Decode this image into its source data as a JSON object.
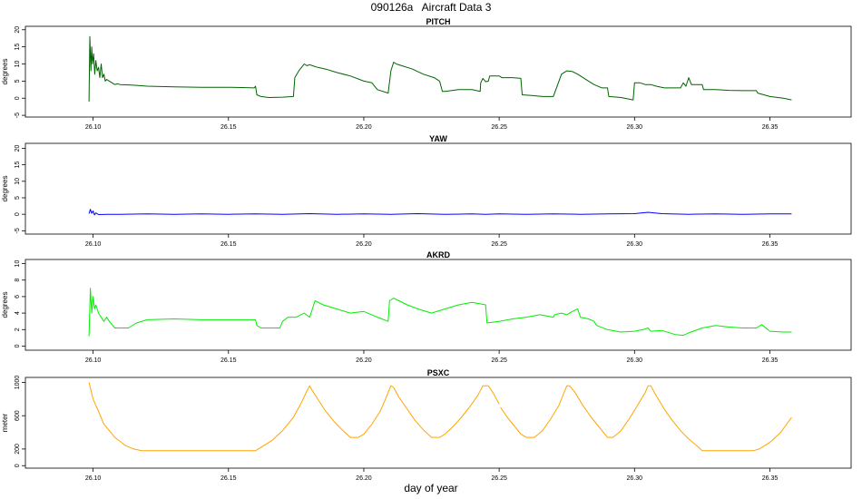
{
  "page": {
    "title": "090126a   Aircraft Data 3",
    "xlabel": "day of year"
  },
  "chart_data": [
    {
      "type": "line",
      "title": "PITCH",
      "ylabel": "degrees",
      "xlim": [
        26.075,
        26.38
      ],
      "ylim": [
        -5.5,
        21
      ],
      "yticks": [
        -5,
        0,
        5,
        10,
        15,
        20
      ],
      "xticks": [
        26.1,
        26.15,
        26.2,
        26.25,
        26.3,
        26.35
      ],
      "xtick_labels": [
        "26.10",
        "26.15",
        "26.20",
        "26.25",
        "26.30",
        "26.35"
      ],
      "color": "#006400",
      "series": [
        {
          "x": [
            26.0985,
            26.0988,
            26.0992,
            26.0995,
            26.0998,
            26.1002,
            26.1006,
            26.101,
            26.1015,
            26.102,
            26.1025,
            26.103,
            26.1035,
            26.104,
            26.1045,
            26.105,
            26.106,
            26.107,
            26.108,
            26.109,
            26.11,
            26.115,
            26.12,
            26.13,
            26.14,
            26.15,
            26.155,
            26.1595,
            26.16,
            26.1605,
            26.162,
            26.165,
            26.17,
            26.174,
            26.1745,
            26.176,
            26.177,
            26.178,
            26.179,
            26.18,
            26.181,
            26.183,
            26.186,
            26.19,
            26.195,
            26.2,
            26.203,
            26.205,
            26.209,
            26.21,
            26.211,
            26.212,
            26.214,
            26.218,
            26.222,
            26.226,
            26.228,
            26.229,
            26.23,
            26.235,
            26.24,
            26.243,
            26.2432,
            26.244,
            26.245,
            26.246,
            26.2465,
            26.25,
            26.251,
            26.253,
            26.255,
            26.258,
            26.2585,
            26.262,
            26.266,
            26.27,
            26.273,
            26.274,
            26.275,
            26.277,
            26.279,
            26.281,
            26.283,
            26.285,
            26.288,
            26.29,
            26.2905,
            26.295,
            26.2995,
            26.3,
            26.302,
            26.304,
            26.306,
            26.308,
            26.311,
            26.314,
            26.317,
            26.318,
            26.319,
            26.32,
            26.321,
            26.323,
            26.325,
            26.3255,
            26.33,
            26.335,
            26.34,
            26.345,
            26.3455,
            26.35,
            26.355,
            26.358
          ],
          "y": [
            -1,
            18,
            8,
            15,
            10,
            13,
            7,
            11,
            8,
            9,
            6,
            10,
            6,
            7,
            5,
            5.5,
            5,
            4.5,
            4,
            4.2,
            4,
            3.8,
            3.5,
            3.3,
            3.2,
            3.2,
            3.1,
            3,
            3.5,
            1,
            0.5,
            0.2,
            0.3,
            0.5,
            6,
            8,
            9,
            10,
            9.5,
            9.8,
            9.5,
            9,
            8.5,
            7.5,
            6.5,
            5,
            4.5,
            2.5,
            1.5,
            8,
            10.5,
            10,
            9.5,
            8.5,
            7,
            6,
            5,
            2,
            2,
            2.5,
            2.5,
            2,
            4.5,
            5.8,
            4.8,
            5,
            6.5,
            6.5,
            6,
            6,
            6,
            5.8,
            1,
            0.8,
            0.5,
            0.5,
            7,
            7.5,
            8,
            7.8,
            7,
            6,
            5,
            4,
            3,
            3,
            0.5,
            0.2,
            -0.5,
            4.5,
            4.5,
            4,
            4,
            3.5,
            3,
            3,
            3,
            4.5,
            3.5,
            6,
            4,
            4,
            4,
            2.5,
            2.5,
            2.3,
            2.2,
            2.2,
            1.5,
            0.5,
            0,
            -0.5
          ]
        }
      ]
    },
    {
      "type": "line",
      "title": "YAW",
      "ylabel": "degrees",
      "xlim": [
        26.075,
        26.38
      ],
      "ylim": [
        -6,
        21.5
      ],
      "yticks": [
        -5,
        0,
        5,
        10,
        15,
        20
      ],
      "xticks": [
        26.1,
        26.15,
        26.2,
        26.25,
        26.3,
        26.35
      ],
      "xtick_labels": [
        "26.10",
        "26.15",
        "26.20",
        "26.25",
        "26.30",
        "26.35"
      ],
      "color": "#0000ff",
      "series": [
        {
          "x": [
            26.0985,
            26.099,
            26.0995,
            26.1,
            26.1005,
            26.101,
            26.102,
            26.105,
            26.11,
            26.12,
            26.13,
            26.14,
            26.15,
            26.16,
            26.17,
            26.18,
            26.19,
            26.2,
            26.21,
            26.22,
            26.23,
            26.24,
            26.245,
            26.25,
            26.26,
            26.27,
            26.28,
            26.29,
            26.3,
            26.305,
            26.31,
            26.32,
            26.33,
            26.34,
            26.35,
            26.358
          ],
          "y": [
            0.2,
            1.5,
            0.3,
            1.0,
            -0.2,
            0.4,
            -0.1,
            0,
            0,
            0.1,
            0,
            0.1,
            0,
            0.1,
            0,
            0.2,
            0,
            0.1,
            0,
            0.2,
            0,
            0.1,
            0,
            0.1,
            0,
            0.1,
            0,
            0.1,
            0.2,
            0.6,
            0.2,
            0,
            0.1,
            0,
            0.1,
            0.1
          ]
        }
      ]
    },
    {
      "type": "line",
      "title": "AKRD",
      "ylabel": "degrees",
      "xlim": [
        26.075,
        26.38
      ],
      "ylim": [
        -0.5,
        10.5
      ],
      "yticks": [
        0,
        2,
        4,
        6,
        8,
        10
      ],
      "xticks": [
        26.1,
        26.15,
        26.2,
        26.25,
        26.3,
        26.35
      ],
      "xtick_labels": [
        "26.10",
        "26.15",
        "26.20",
        "26.25",
        "26.30",
        "26.35"
      ],
      "color": "#00ee00",
      "series": [
        {
          "x": [
            26.0985,
            26.099,
            26.0995,
            26.1,
            26.1005,
            26.101,
            26.102,
            26.103,
            26.104,
            26.105,
            26.106,
            26.108,
            26.11,
            26.113,
            26.116,
            26.12,
            26.13,
            26.14,
            26.15,
            26.16,
            26.1605,
            26.162,
            26.165,
            26.169,
            26.17,
            26.172,
            26.175,
            26.178,
            26.18,
            26.182,
            26.185,
            26.19,
            26.195,
            26.2,
            26.205,
            26.209,
            26.2095,
            26.211,
            26.213,
            26.216,
            26.22,
            26.225,
            26.23,
            26.235,
            26.24,
            26.245,
            26.2455,
            26.25,
            26.255,
            26.26,
            26.265,
            26.27,
            26.2705,
            26.273,
            26.275,
            26.277,
            26.279,
            26.28,
            26.283,
            26.285,
            26.286,
            26.29,
            26.295,
            26.3,
            26.303,
            26.305,
            26.306,
            26.31,
            26.315,
            26.318,
            26.32,
            26.325,
            26.33,
            26.335,
            26.34,
            26.345,
            26.347,
            26.35,
            26.355,
            26.358
          ],
          "y": [
            1.2,
            7,
            4,
            6,
            4.5,
            5,
            4,
            3.5,
            3,
            3.5,
            3,
            2.2,
            2.2,
            2.2,
            2.8,
            3.2,
            3.3,
            3.2,
            3.2,
            3.2,
            2.5,
            2.2,
            2.2,
            2.2,
            3,
            3.5,
            3.5,
            4,
            3.5,
            5.5,
            5,
            4.5,
            4,
            4.2,
            3.5,
            3,
            5.5,
            5.8,
            5.5,
            5,
            4.5,
            4,
            4.5,
            5,
            5.3,
            5,
            2.8,
            3,
            3.3,
            3.5,
            3.8,
            3.5,
            3.8,
            4,
            3.8,
            4.2,
            4.5,
            3.5,
            3.3,
            3,
            2.5,
            2,
            1.7,
            1.8,
            2,
            2.2,
            1.8,
            1.9,
            1.4,
            1.3,
            1.6,
            2.2,
            2.5,
            2.3,
            2.2,
            2.2,
            2.6,
            1.8,
            1.7,
            1.7
          ]
        }
      ]
    },
    {
      "type": "line",
      "title": "PSXC",
      "ylabel": "meter",
      "xlim": [
        26.075,
        26.38
      ],
      "ylim": [
        -30,
        1060
      ],
      "yticks": [
        0,
        200,
        600,
        1000
      ],
      "xticks": [
        26.1,
        26.15,
        26.2,
        26.25,
        26.3,
        26.35
      ],
      "xtick_labels": [
        "26.10",
        "26.15",
        "26.20",
        "26.25",
        "26.30",
        "26.35"
      ],
      "color": "#ffa500",
      "series": [
        {
          "x": [
            26.0985,
            26.1,
            26.102,
            26.104,
            26.106,
            26.108,
            26.11,
            26.112,
            26.115,
            26.118,
            26.12,
            26.13,
            26.14,
            26.15,
            26.155,
            26.16,
            26.162,
            26.166,
            26.17,
            26.174,
            26.177,
            26.179,
            26.18,
            26.181,
            26.183,
            26.186,
            26.189,
            26.192,
            26.195,
            26.196,
            26.198,
            26.2,
            26.203,
            26.206,
            26.208,
            26.21,
            26.211,
            26.213,
            26.216,
            26.219,
            26.222,
            26.225,
            26.226,
            26.228,
            26.23,
            26.233,
            26.236,
            26.239,
            26.242,
            26.244,
            26.245,
            26.246,
            26.248,
            26.25,
            null,
            26.2505,
            26.253,
            26.256,
            26.258,
            26.26,
            26.263,
            26.266,
            26.269,
            26.272,
            26.274,
            26.275,
            26.276,
            26.278,
            26.281,
            26.284,
            26.287,
            26.289,
            26.29,
            26.292,
            26.295,
            26.298,
            26.301,
            26.304,
            26.305,
            26.306,
            26.308,
            26.311,
            26.314,
            26.317,
            26.32,
            26.323,
            26.325,
            26.33,
            26.34,
            26.344,
            26.346,
            26.35,
            26.354,
            26.358
          ],
          "y": [
            1000,
            800,
            650,
            500,
            420,
            340,
            290,
            240,
            200,
            180,
            180,
            180,
            180,
            180,
            180,
            180,
            220,
            300,
            420,
            580,
            760,
            900,
            960,
            900,
            800,
            650,
            530,
            430,
            340,
            340,
            340,
            380,
            500,
            650,
            800,
            960,
            940,
            820,
            680,
            540,
            430,
            340,
            340,
            340,
            380,
            470,
            580,
            700,
            840,
            960,
            960,
            960,
            860,
            740,
            null,
            700,
            580,
            460,
            380,
            340,
            340,
            420,
            560,
            720,
            880,
            960,
            960,
            880,
            720,
            580,
            460,
            380,
            340,
            340,
            420,
            560,
            720,
            880,
            960,
            960,
            840,
            680,
            540,
            420,
            320,
            240,
            180,
            180,
            180,
            180,
            200,
            280,
            400,
            580
          ]
        }
      ]
    }
  ]
}
